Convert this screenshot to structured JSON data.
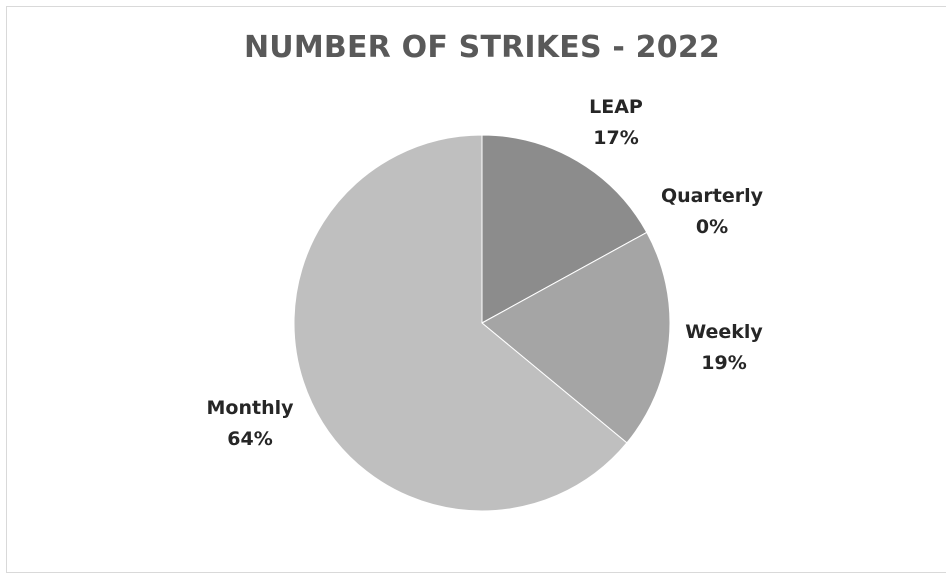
{
  "chart_data": {
    "type": "pie",
    "title": "NUMBER OF STRIKES - 2022",
    "categories": [
      "LEAP",
      "Quarterly",
      "Weekly",
      "Monthly"
    ],
    "values": [
      17,
      0,
      19,
      64
    ],
    "labels": [
      "LEAP\n17%",
      "Quarterly\n0%",
      "Weekly\n19%",
      "Monthly\n64%"
    ],
    "colors": [
      "#8c8c8c",
      "#a6a6a6",
      "#a5a5a5",
      "#bfbfbf"
    ],
    "start_angle_deg": 0,
    "legend": "none"
  }
}
